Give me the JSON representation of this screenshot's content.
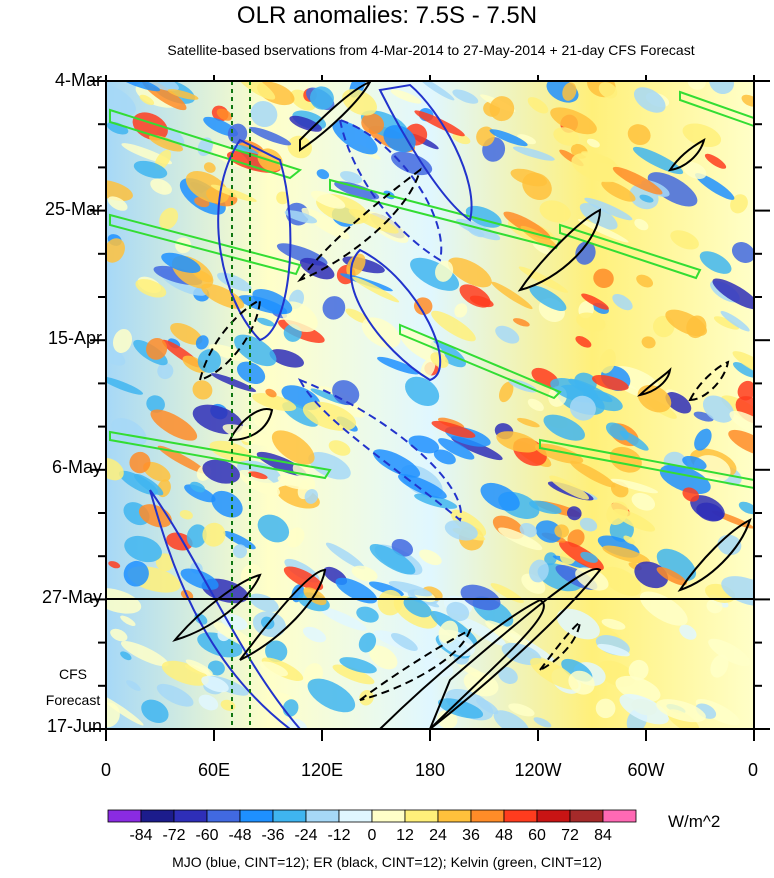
{
  "chart_data": {
    "type": "heatmap",
    "title": "OLR anomalies: 7.5S - 7.5N",
    "subtitle": "Satellite-based bservations from 4-Mar-2014 to 27-May-2014 + 21-day CFS Forecast",
    "x_ticks": [
      "0",
      "60E",
      "120E",
      "180",
      "120W",
      "60W",
      "0"
    ],
    "x_range_deg": [
      0,
      360
    ],
    "y_ticks": [
      "4-Mar",
      "25-Mar",
      "15-Apr",
      "6-May",
      "27-May",
      "17-Jun"
    ],
    "y_range_days": [
      0,
      105
    ],
    "forecast_start": "27-May",
    "forecast_label": [
      "CFS",
      "Forecast"
    ],
    "colorbar": {
      "labels": [
        "-84",
        "-72",
        "-60",
        "-48",
        "-36",
        "-24",
        "-12",
        "0",
        "12",
        "24",
        "36",
        "48",
        "60",
        "72",
        "84"
      ],
      "colors": [
        "#8a2be2",
        "#1c1c8c",
        "#2e2eb8",
        "#4169e1",
        "#1e90ff",
        "#3fb5f0",
        "#a6d8f7",
        "#e0f7ff",
        "#ffffc8",
        "#fff07a",
        "#ffc13c",
        "#ff8c28",
        "#ff3c1e",
        "#c81414",
        "#a52a2a",
        "#ff69b4"
      ],
      "units": "W/m^2"
    },
    "reference_lines_deg": [
      70,
      80
    ],
    "legend_note": "MJO (blue, CINT=12); ER (black, CINT=12); Kelvin (green, CINT=12)"
  }
}
